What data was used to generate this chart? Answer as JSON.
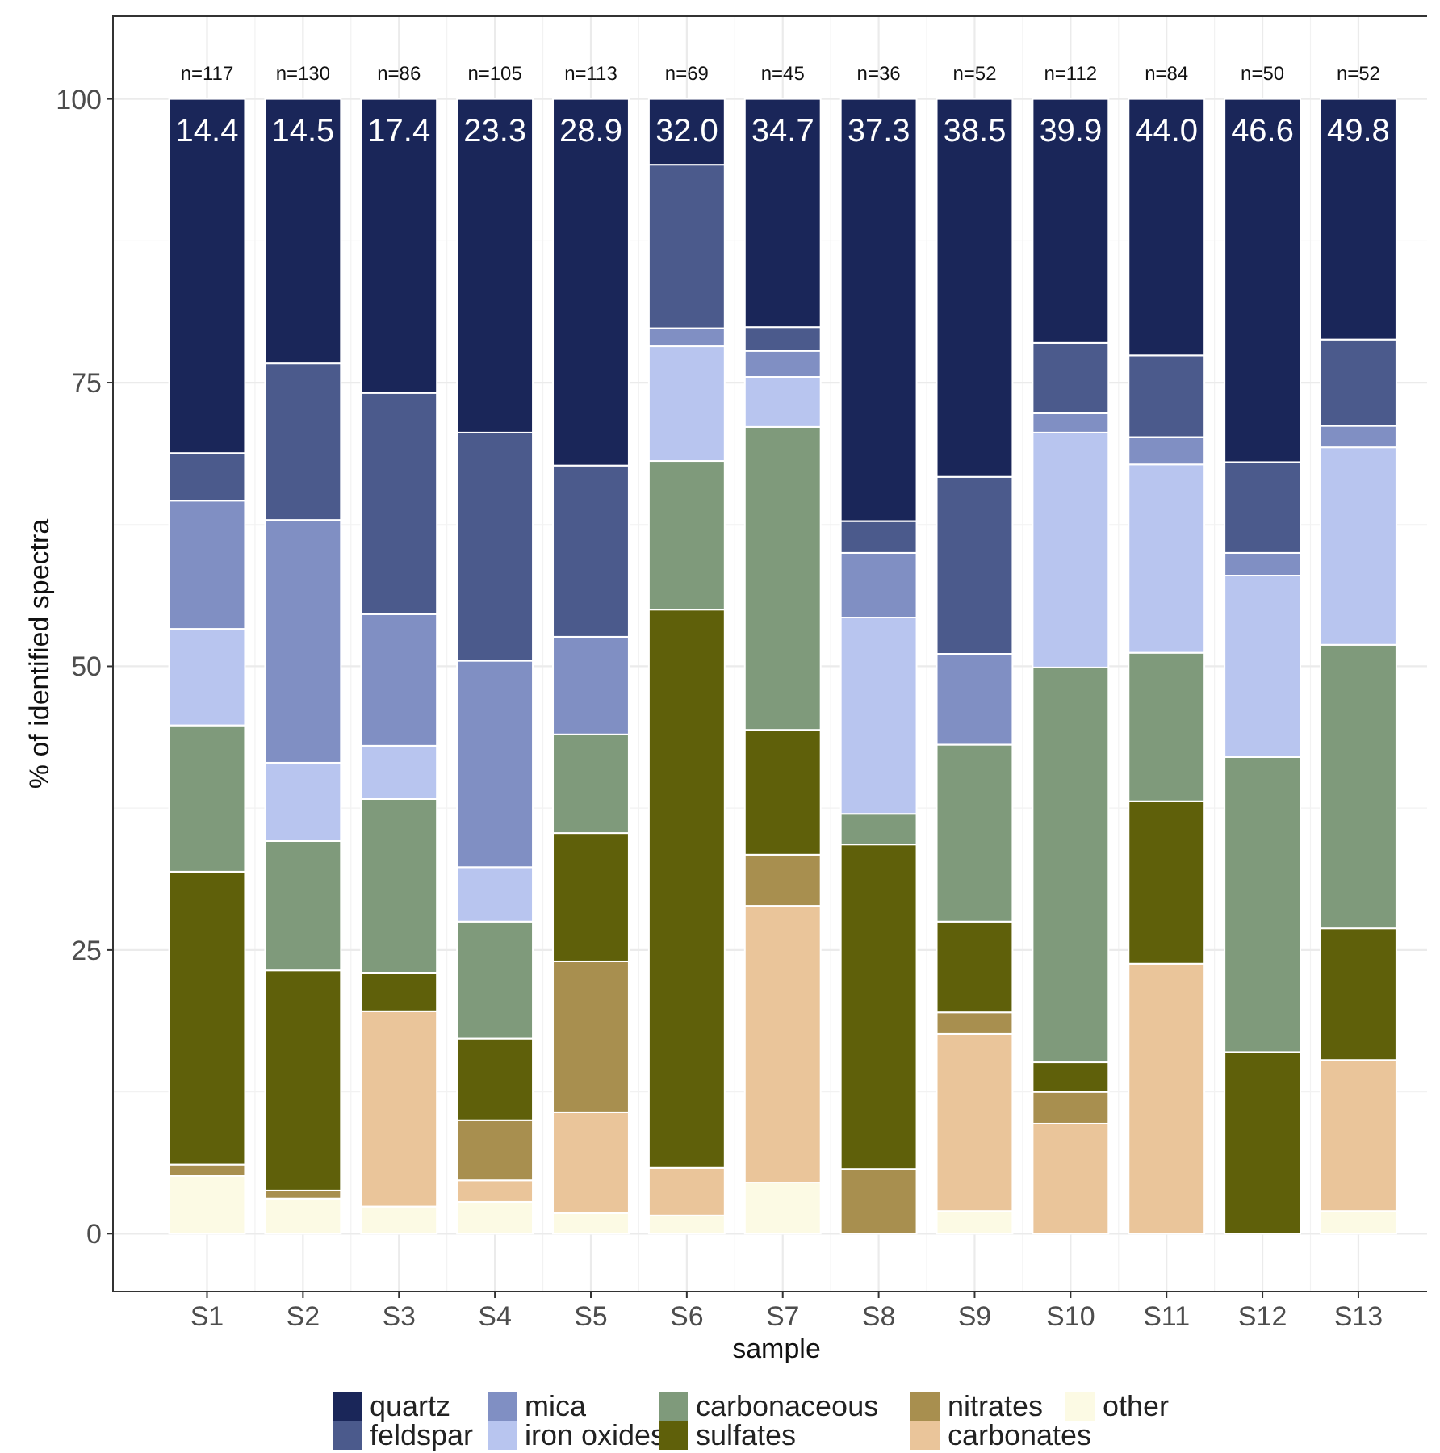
{
  "chart_data": {
    "type": "bar",
    "stacked": true,
    "xlabel": "sample",
    "ylabel": "% of identified spectra",
    "categories": [
      "S1",
      "S2",
      "S3",
      "S4",
      "S5",
      "S6",
      "S7",
      "S8",
      "S9",
      "S10",
      "S11",
      "S12",
      "S13"
    ],
    "series": [
      {
        "name": "other",
        "color": "#fcfae4",
        "values": [
          5.1,
          3.1,
          2.4,
          2.8,
          1.8,
          1.6,
          4.5,
          0,
          2.0,
          0,
          0,
          0,
          2.0
        ]
      },
      {
        "name": "carbonates",
        "color": "#eac59a",
        "values": [
          0,
          0,
          17.2,
          1.9,
          8.9,
          4.2,
          24.4,
          0,
          15.6,
          9.7,
          23.8,
          0,
          13.3
        ]
      },
      {
        "name": "nitrates",
        "color": "#a88f4f",
        "values": [
          1.0,
          0.7,
          0,
          5.3,
          13.3,
          0,
          4.5,
          5.7,
          1.9,
          2.8,
          0,
          0,
          0
        ]
      },
      {
        "name": "sulfates",
        "color": "#5f600a",
        "values": [
          25.8,
          19.4,
          3.4,
          7.2,
          11.3,
          49.2,
          11.0,
          28.6,
          8.0,
          2.6,
          14.3,
          16.0,
          11.6
        ]
      },
      {
        "name": "carbonaceous",
        "color": "#7f9a7b",
        "values": [
          12.9,
          11.4,
          15.3,
          10.3,
          8.7,
          13.1,
          26.7,
          2.7,
          15.6,
          34.8,
          13.1,
          26.0,
          25.0
        ]
      },
      {
        "name": "iron oxides",
        "color": "#b8c5ef",
        "values": [
          8.5,
          6.9,
          4.7,
          4.8,
          0,
          10.1,
          4.4,
          17.3,
          0,
          20.7,
          16.6,
          16.0,
          17.4
        ]
      },
      {
        "name": "mica",
        "color": "#808fc3",
        "values": [
          11.3,
          21.4,
          11.6,
          18.2,
          8.6,
          1.6,
          2.3,
          5.7,
          8.0,
          1.7,
          2.4,
          2.0,
          1.9
        ]
      },
      {
        "name": "feldspar",
        "color": "#4b5a8c",
        "values": [
          4.2,
          13.8,
          19.5,
          20.1,
          15.1,
          14.4,
          2.1,
          2.8,
          15.6,
          6.2,
          7.2,
          8.0,
          7.6
        ]
      },
      {
        "name": "quartz",
        "color": "#1a2659",
        "values": [
          31.2,
          23.3,
          25.9,
          29.4,
          32.3,
          5.8,
          20.1,
          37.2,
          33.3,
          21.5,
          22.6,
          32.0,
          21.2
        ]
      }
    ],
    "ylim": [
      -5.1,
      107.3
    ],
    "yticks": [
      0,
      25,
      50,
      75,
      100
    ],
    "grid": true,
    "legend": "bottom",
    "annotations": [
      "n=117",
      "n=130",
      "n=86",
      "n=105",
      "n=113",
      "n=69",
      "n=45",
      "n=36",
      "n=52",
      "n=112",
      "n=84",
      "n=50",
      "n=52",
      "14.4",
      "14.5",
      "17.4",
      "23.3",
      "28.9",
      "32.0",
      "34.7",
      "37.3",
      "38.5",
      "39.9",
      "44.0",
      "46.6",
      "49.8"
    ]
  }
}
